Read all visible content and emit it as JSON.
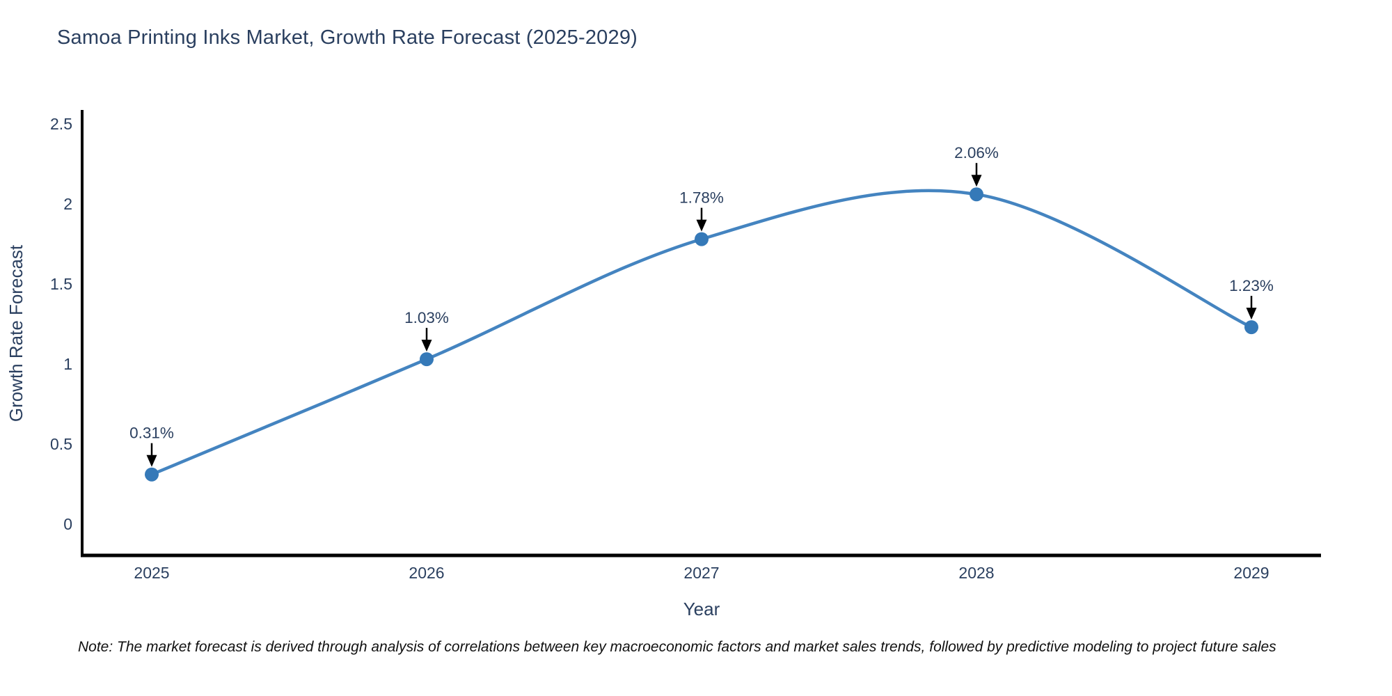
{
  "title": "Samoa Printing Inks Market, Growth Rate Forecast (2025-2029)",
  "note": "Note: The market forecast is derived through analysis of correlations between key macroeconomic factors and market sales trends, followed by predictive modeling to project future sales",
  "chart_data": {
    "type": "line",
    "title": "Samoa Printing Inks Market, Growth Rate Forecast (2025-2029)",
    "xlabel": "Year",
    "ylabel": "Growth Rate Forecast",
    "categories": [
      "2025",
      "2026",
      "2027",
      "2028",
      "2029"
    ],
    "series": [
      {
        "name": "Growth Rate Forecast",
        "values": [
          0.31,
          1.03,
          1.78,
          2.06,
          1.23
        ]
      }
    ],
    "point_labels": [
      "0.31%",
      "1.03%",
      "1.78%",
      "2.06%",
      "1.23%"
    ],
    "ytick_labels": [
      "0",
      "0.5",
      "1",
      "1.5",
      "2",
      "2.5"
    ],
    "ytick_values": [
      0,
      0.5,
      1,
      1.5,
      2,
      2.5
    ],
    "ylim": [
      -0.2,
      2.5
    ],
    "line_shape": "spline",
    "grid": false,
    "legend": "none",
    "colors": {
      "line": "#4484c0",
      "marker": "#3579b8",
      "axis": "#000000",
      "text": "#2a3f5f",
      "annotation_arrow": "#000000"
    }
  }
}
